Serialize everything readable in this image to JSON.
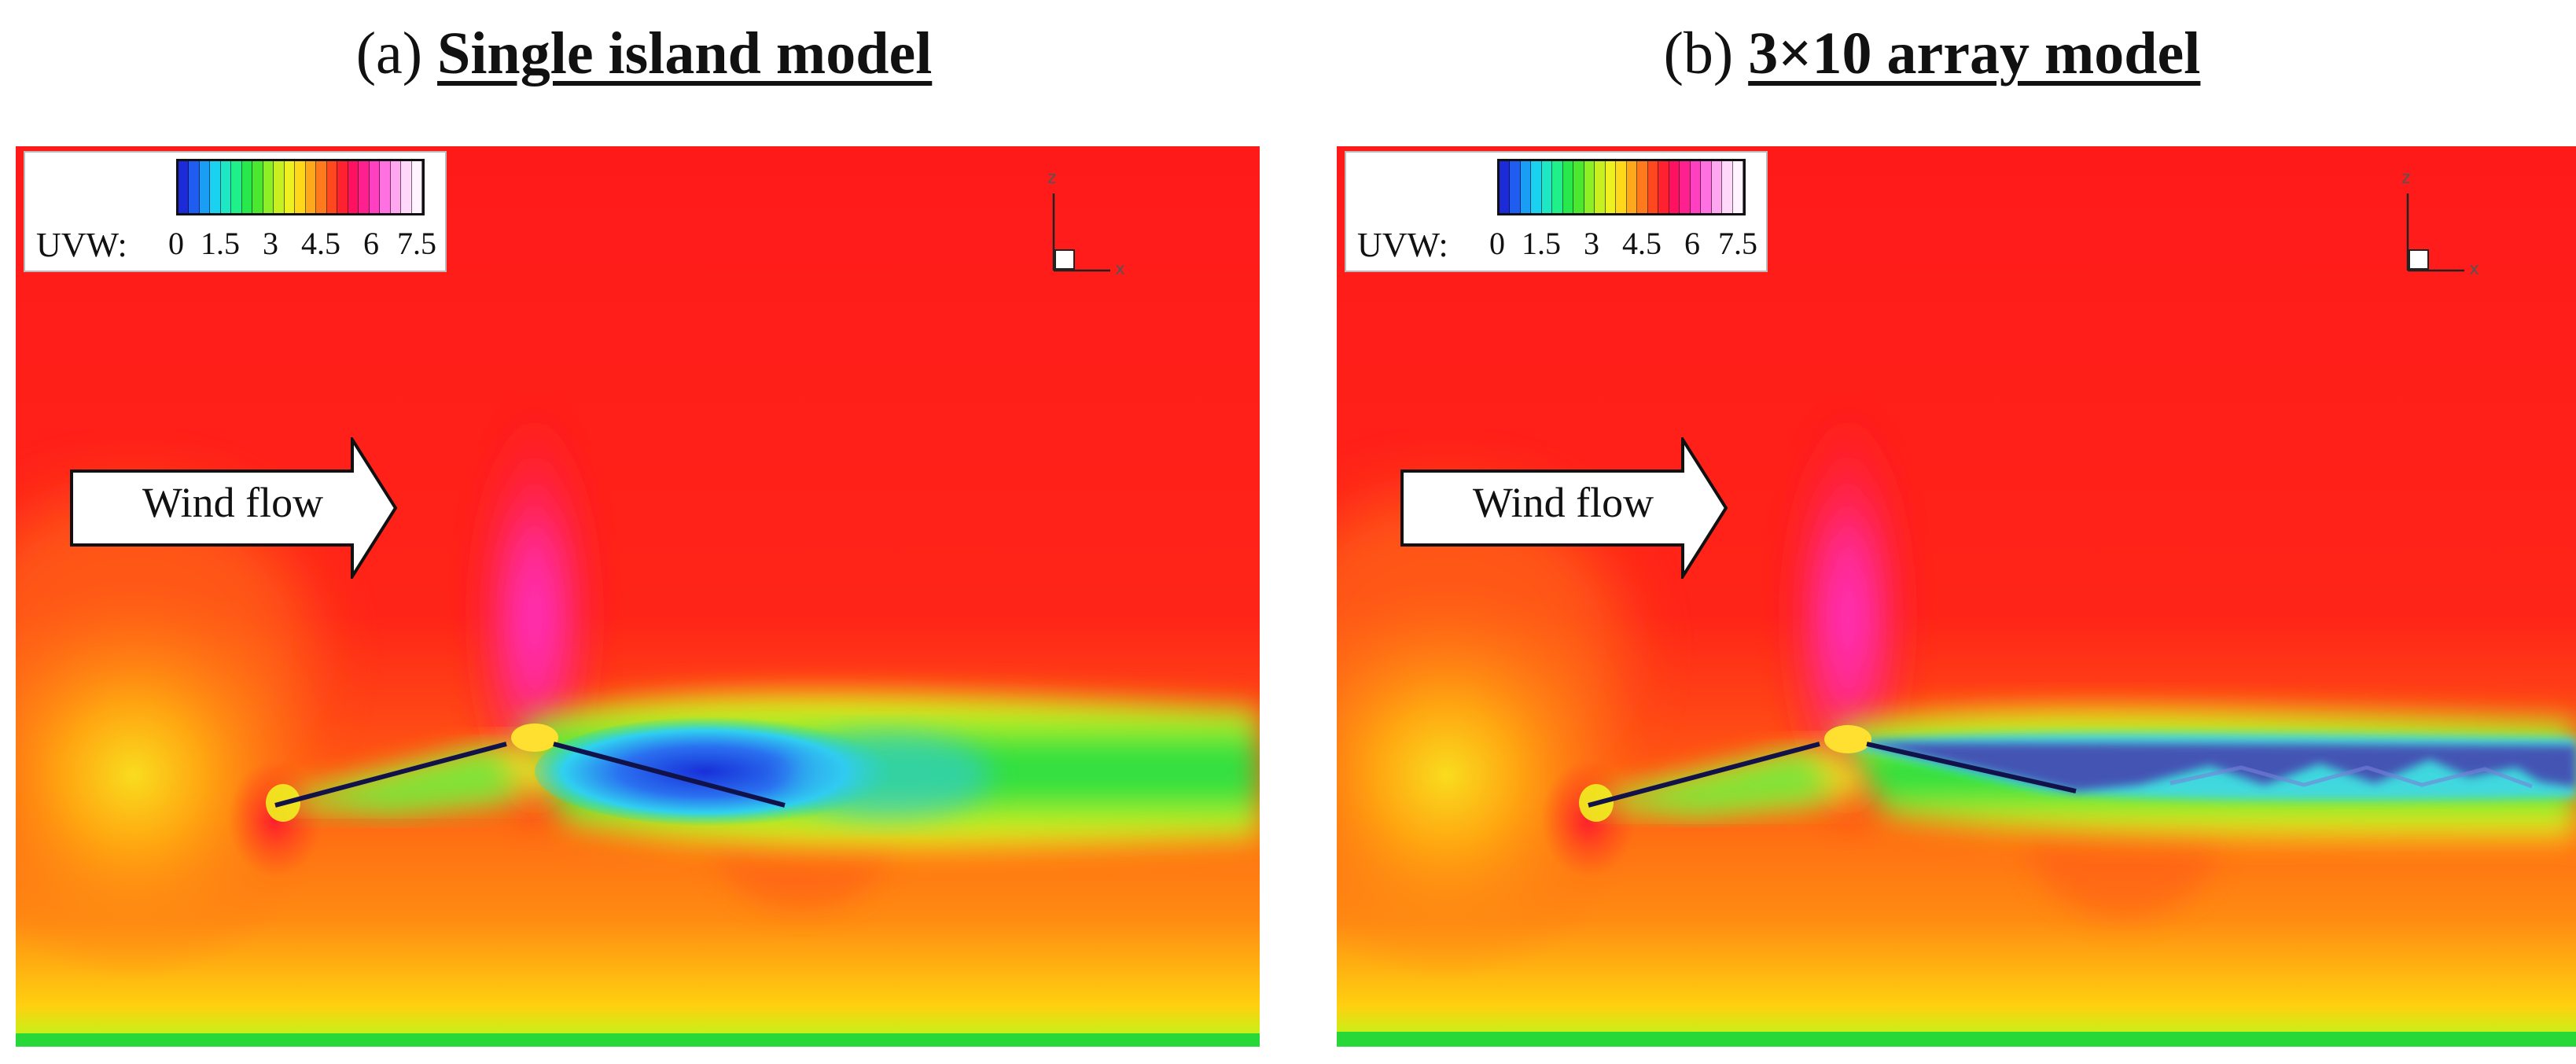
{
  "panels": [
    {
      "id": "a",
      "label": "(a)",
      "name": "Single island model",
      "legend_title": "UVW:",
      "ticks": [
        "0",
        "1.5",
        "3",
        "4.5",
        "6",
        "7.5"
      ],
      "wind_label": "Wind flow",
      "axis_z": "z",
      "axis_x": "x"
    },
    {
      "id": "b",
      "label": "(b)",
      "name": "3×10 array model",
      "legend_title": "UVW:",
      "ticks": [
        "0",
        "1.5",
        "3",
        "4.5",
        "6",
        "7.5"
      ],
      "wind_label": "Wind flow",
      "axis_z": "z",
      "axis_x": "x"
    }
  ],
  "colorbar_colors": [
    "#1b2bd8",
    "#1f5cf0",
    "#1a9ef5",
    "#1ad1f0",
    "#1ee8c4",
    "#20f08a",
    "#28e84c",
    "#4ce830",
    "#8ef024",
    "#c8f020",
    "#eef020",
    "#ffd81c",
    "#ffa81c",
    "#ff7a1c",
    "#ff4820",
    "#ff2030",
    "#ff1060",
    "#ff2090",
    "#ff40c0",
    "#ff70e0",
    "#ffa8f0",
    "#ffd8fa",
    "#fff4ff"
  ]
}
